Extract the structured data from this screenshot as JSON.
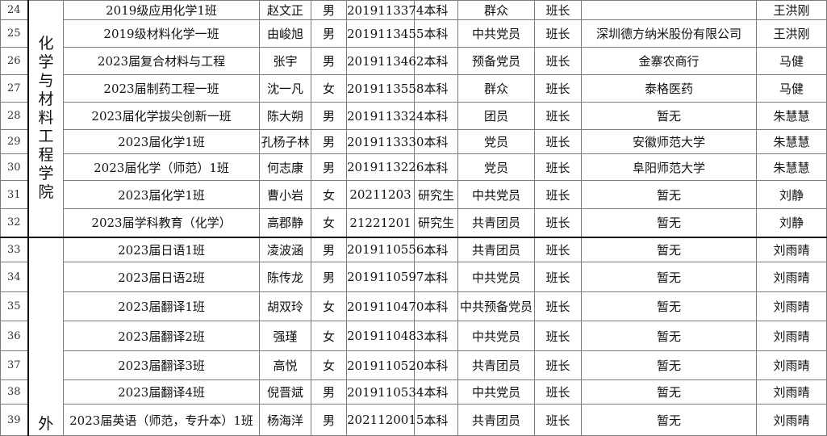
{
  "groups": [
    {
      "college": "化学与材料工程学院",
      "rows": [
        {
          "no": "24",
          "class": "2019级应用化学1班",
          "name": "赵文正",
          "gender": "男",
          "id": "2019113374",
          "level": "本科",
          "politics": "群众",
          "role": "班长",
          "employer": "",
          "teacher": "王洪刚"
        },
        {
          "no": "25",
          "class": "2019级材料化学一班",
          "name": "由峻旭",
          "gender": "男",
          "id": "2019113455",
          "level": "本科",
          "politics": "中共党员",
          "role": "班长",
          "employer": "深圳德方纳米股份有限公司",
          "teacher": "王洪刚"
        },
        {
          "no": "26",
          "class": "2023届复合材料与工程",
          "name": "张宇",
          "gender": "男",
          "id": "2019113462",
          "level": "本科",
          "politics": "预备党员",
          "role": "班长",
          "employer": "金寨农商行",
          "teacher": "马健"
        },
        {
          "no": "27",
          "class": "2023届制药工程一班",
          "name": "沈一凡",
          "gender": "女",
          "id": "2019113558",
          "level": "本科",
          "politics": "群众",
          "role": "班长",
          "employer": "泰格医药",
          "teacher": "马健"
        },
        {
          "no": "28",
          "class": "2023届化学拔尖创新一班",
          "name": "陈大朔",
          "gender": "男",
          "id": "2019113324",
          "level": "本科",
          "politics": "团员",
          "role": "班长",
          "employer": "暂无",
          "teacher": "朱慧慧"
        },
        {
          "no": "29",
          "class": "2023届化学1班",
          "name": "孔杨子林",
          "gender": "男",
          "id": "2019113330",
          "level": "本科",
          "politics": "党员",
          "role": "班长",
          "employer": "安徽师范大学",
          "teacher": "朱慧慧"
        },
        {
          "no": "30",
          "class": "2023届化学（师范）1班",
          "name": "何志康",
          "gender": "男",
          "id": "2019113226",
          "level": "本科",
          "politics": "党员",
          "role": "班长",
          "employer": "阜阳师范大学",
          "teacher": "朱慧慧"
        },
        {
          "no": "31",
          "class": "2023届化学1班",
          "name": "曹小岩",
          "gender": "女",
          "id": "20211203",
          "level": "研究生",
          "politics": "中共党员",
          "role": "班长",
          "employer": "暂无",
          "teacher": "刘静"
        },
        {
          "no": "32",
          "class": "2023届学科教育（化学）",
          "name": "高郡静",
          "gender": "女",
          "id": "21221201",
          "level": "研究生",
          "politics": "共青团员",
          "role": "班长",
          "employer": "暂无",
          "teacher": "刘静"
        }
      ]
    },
    {
      "college": "外",
      "rows": [
        {
          "no": "33",
          "class": "2023届日语1班",
          "name": "凌波涵",
          "gender": "男",
          "id": "2019110556",
          "level": "本科",
          "politics": "共青团员",
          "role": "班长",
          "employer": "暂无",
          "teacher": "刘雨晴"
        },
        {
          "no": "34",
          "class": "2023届日语2班",
          "name": "陈传龙",
          "gender": "男",
          "id": "2019110597",
          "level": "本科",
          "politics": "中共党员",
          "role": "班长",
          "employer": "暂无",
          "teacher": "刘雨晴"
        },
        {
          "no": "35",
          "class": "2023届翻译1班",
          "name": "胡双玲",
          "gender": "女",
          "id": "2019110470",
          "level": "本科",
          "politics": "中共预备党员",
          "role": "班长",
          "employer": "暂无",
          "teacher": "刘雨晴"
        },
        {
          "no": "36",
          "class": "2023届翻译2班",
          "name": "强瑾",
          "gender": "女",
          "id": "2019110483",
          "level": "本科",
          "politics": "中共党员",
          "role": "班长",
          "employer": "暂无",
          "teacher": "刘雨晴"
        },
        {
          "no": "37",
          "class": "2023届翻译3班",
          "name": "高悦",
          "gender": "女",
          "id": "2019110520",
          "level": "本科",
          "politics": "共青团员",
          "role": "班长",
          "employer": "暂无",
          "teacher": "刘雨晴"
        },
        {
          "no": "38",
          "class": "2023届翻译4班",
          "name": "倪晋斌",
          "gender": "男",
          "id": "2019110534",
          "level": "本科",
          "politics": "中共党员",
          "role": "班长",
          "employer": "暂无",
          "teacher": "刘雨晴"
        },
        {
          "no": "39",
          "class": "2023届英语（师范，专升本）1班",
          "name": "杨海洋",
          "gender": "男",
          "id": "2021120015",
          "level": "本科",
          "politics": "共青团员",
          "role": "班长",
          "employer": "暂无",
          "teacher": "刘雨晴"
        }
      ]
    }
  ]
}
